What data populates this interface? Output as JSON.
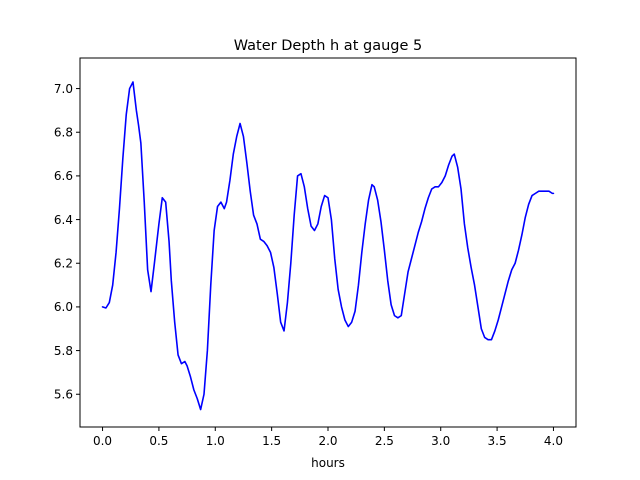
{
  "chart_data": {
    "type": "line",
    "title": "Water Depth h at gauge 5",
    "xlabel": "hours",
    "ylabel": "",
    "xlim": [
      -0.2,
      4.2
    ],
    "ylim": [
      5.45,
      7.14
    ],
    "xticks": [
      0.0,
      0.5,
      1.0,
      1.5,
      2.0,
      2.5,
      3.0,
      3.5,
      4.0
    ],
    "xtick_labels": [
      "0.0",
      "0.5",
      "1.0",
      "1.5",
      "2.0",
      "2.5",
      "3.0",
      "3.5",
      "4.0"
    ],
    "yticks": [
      5.6,
      5.8,
      6.0,
      6.2,
      6.4,
      6.6,
      6.8,
      7.0
    ],
    "ytick_labels": [
      "5.6",
      "5.8",
      "6.0",
      "6.2",
      "6.4",
      "6.6",
      "6.8",
      "7.0"
    ],
    "grid": false,
    "series": [
      {
        "color": "#0000ff",
        "x": [
          0.0,
          0.03,
          0.06,
          0.09,
          0.12,
          0.15,
          0.18,
          0.21,
          0.24,
          0.27,
          0.3,
          0.32,
          0.34,
          0.37,
          0.4,
          0.43,
          0.46,
          0.48,
          0.5,
          0.53,
          0.56,
          0.59,
          0.61,
          0.64,
          0.67,
          0.7,
          0.73,
          0.75,
          0.78,
          0.81,
          0.84,
          0.87,
          0.9,
          0.93,
          0.96,
          0.99,
          1.02,
          1.05,
          1.08,
          1.1,
          1.13,
          1.16,
          1.19,
          1.22,
          1.25,
          1.28,
          1.31,
          1.34,
          1.37,
          1.4,
          1.43,
          1.46,
          1.49,
          1.52,
          1.55,
          1.58,
          1.61,
          1.64,
          1.67,
          1.7,
          1.73,
          1.76,
          1.79,
          1.82,
          1.85,
          1.88,
          1.91,
          1.94,
          1.97,
          2.0,
          2.03,
          2.06,
          2.09,
          2.12,
          2.15,
          2.18,
          2.21,
          2.24,
          2.27,
          2.3,
          2.33,
          2.36,
          2.39,
          2.41,
          2.44,
          2.47,
          2.5,
          2.53,
          2.56,
          2.59,
          2.62,
          2.65,
          2.68,
          2.71,
          2.74,
          2.77,
          2.8,
          2.83,
          2.86,
          2.89,
          2.92,
          2.95,
          2.98,
          3.01,
          3.04,
          3.07,
          3.1,
          3.12,
          3.15,
          3.18,
          3.21,
          3.24,
          3.27,
          3.3,
          3.33,
          3.36,
          3.39,
          3.42,
          3.45,
          3.48,
          3.51,
          3.54,
          3.57,
          3.6,
          3.63,
          3.66,
          3.69,
          3.72,
          3.75,
          3.78,
          3.81,
          3.84,
          3.87,
          3.9,
          3.93,
          3.96,
          3.99,
          4.0
        ],
        "y": [
          6.0,
          5.995,
          6.02,
          6.1,
          6.25,
          6.45,
          6.68,
          6.88,
          7.0,
          7.03,
          6.9,
          6.83,
          6.75,
          6.48,
          6.17,
          6.07,
          6.2,
          6.29,
          6.38,
          6.5,
          6.48,
          6.3,
          6.12,
          5.93,
          5.78,
          5.74,
          5.75,
          5.73,
          5.68,
          5.62,
          5.58,
          5.53,
          5.6,
          5.8,
          6.1,
          6.35,
          6.46,
          6.48,
          6.45,
          6.48,
          6.58,
          6.7,
          6.78,
          6.84,
          6.78,
          6.66,
          6.53,
          6.42,
          6.38,
          6.31,
          6.3,
          6.28,
          6.25,
          6.18,
          6.06,
          5.93,
          5.89,
          6.02,
          6.2,
          6.42,
          6.6,
          6.61,
          6.55,
          6.45,
          6.37,
          6.35,
          6.38,
          6.46,
          6.51,
          6.5,
          6.4,
          6.22,
          6.08,
          6.0,
          5.94,
          5.91,
          5.93,
          5.98,
          6.1,
          6.25,
          6.38,
          6.49,
          6.56,
          6.55,
          6.49,
          6.39,
          6.26,
          6.12,
          6.01,
          5.96,
          5.95,
          5.96,
          6.06,
          6.16,
          6.22,
          6.28,
          6.34,
          6.39,
          6.45,
          6.5,
          6.54,
          6.55,
          6.55,
          6.57,
          6.6,
          6.65,
          6.69,
          6.7,
          6.64,
          6.54,
          6.38,
          6.27,
          6.18,
          6.1,
          6.0,
          5.9,
          5.86,
          5.85,
          5.85,
          5.89,
          5.94,
          6.0,
          6.06,
          6.12,
          6.17,
          6.2,
          6.26,
          6.33,
          6.41,
          6.47,
          6.51,
          6.52,
          6.53,
          6.53,
          6.53,
          6.53,
          6.52,
          6.52
        ]
      }
    ]
  }
}
